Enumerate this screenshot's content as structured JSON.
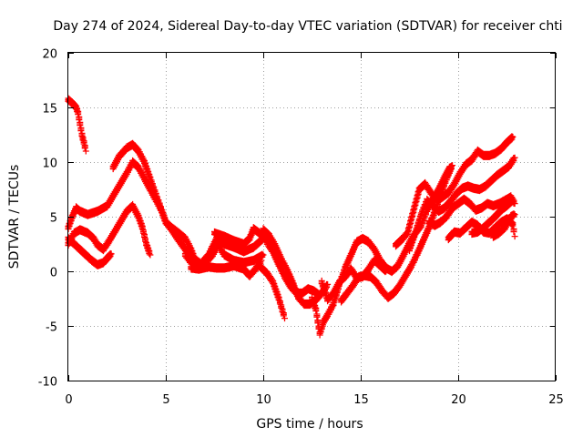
{
  "chart_data": {
    "type": "scatter",
    "title": "Day 274 of 2024, Sidereal Day-to-day VTEC variation (SDTVAR) for receiver chti",
    "xlabel": "GPS time / hours",
    "ylabel": "SDTVAR / TECUs",
    "xlim": [
      0,
      25
    ],
    "ylim": [
      -10,
      20
    ],
    "xticks": [
      0,
      5,
      10,
      15,
      20,
      25
    ],
    "yticks": [
      -10,
      -5,
      0,
      5,
      10,
      15,
      20
    ],
    "grid": true,
    "color": "#ff0000",
    "marker": "plus",
    "series": [
      {
        "name": "s1",
        "points": [
          [
            0.0,
            15.7
          ],
          [
            0.2,
            15.4
          ],
          [
            0.4,
            15.0
          ],
          [
            0.5,
            14.5
          ],
          [
            0.6,
            13.5
          ],
          [
            0.7,
            12.5
          ],
          [
            0.8,
            11.8
          ],
          [
            0.9,
            11.0
          ]
        ]
      },
      {
        "name": "s2",
        "points": [
          [
            0.0,
            4.0
          ],
          [
            0.2,
            5.0
          ],
          [
            0.4,
            5.8
          ],
          [
            0.6,
            5.5
          ],
          [
            1.0,
            5.2
          ],
          [
            1.5,
            5.5
          ],
          [
            2.0,
            6.0
          ],
          [
            2.5,
            7.5
          ],
          [
            3.0,
            9.0
          ],
          [
            3.3,
            10.0
          ],
          [
            3.6,
            9.5
          ],
          [
            3.9,
            8.5
          ],
          [
            4.2,
            7.5
          ],
          [
            4.5,
            6.5
          ],
          [
            4.8,
            5.5
          ],
          [
            5.0,
            4.5
          ],
          [
            5.3,
            4.0
          ],
          [
            5.6,
            3.6
          ],
          [
            6.0,
            3.0
          ],
          [
            6.3,
            2.0
          ],
          [
            6.5,
            1.0
          ],
          [
            6.7,
            0.5
          ]
        ]
      },
      {
        "name": "s3",
        "points": [
          [
            0.0,
            2.5
          ],
          [
            0.3,
            3.5
          ],
          [
            0.6,
            3.8
          ],
          [
            1.0,
            3.5
          ],
          [
            1.3,
            3.0
          ],
          [
            1.5,
            2.4
          ],
          [
            1.8,
            2.0
          ],
          [
            2.1,
            2.8
          ],
          [
            2.5,
            4.0
          ],
          [
            3.0,
            5.5
          ],
          [
            3.3,
            6.0
          ],
          [
            3.6,
            5.0
          ],
          [
            3.8,
            4.0
          ],
          [
            4.0,
            2.5
          ],
          [
            4.2,
            1.5
          ]
        ]
      },
      {
        "name": "s4",
        "points": [
          [
            0.0,
            3.0
          ],
          [
            0.3,
            2.5
          ],
          [
            0.6,
            2.0
          ],
          [
            0.9,
            1.5
          ],
          [
            1.2,
            1.0
          ],
          [
            1.5,
            0.6
          ],
          [
            1.8,
            0.8
          ],
          [
            2.0,
            1.2
          ],
          [
            2.2,
            1.6
          ]
        ]
      },
      {
        "name": "s5",
        "points": [
          [
            2.3,
            9.5
          ],
          [
            2.6,
            10.5
          ],
          [
            3.0,
            11.3
          ],
          [
            3.3,
            11.6
          ],
          [
            3.6,
            11.0
          ],
          [
            3.9,
            10.0
          ],
          [
            4.2,
            8.5
          ],
          [
            4.5,
            7.0
          ],
          [
            4.8,
            5.5
          ],
          [
            5.0,
            4.5
          ],
          [
            5.3,
            3.8
          ],
          [
            5.6,
            3.0
          ],
          [
            6.0,
            2.0
          ],
          [
            6.4,
            1.2
          ],
          [
            6.8,
            0.7
          ],
          [
            7.2,
            1.5
          ],
          [
            7.6,
            3.0
          ],
          [
            8.0,
            2.5
          ],
          [
            8.5,
            2.2
          ],
          [
            9.0,
            1.8
          ],
          [
            9.5,
            2.2
          ],
          [
            10.0,
            3.0
          ]
        ]
      },
      {
        "name": "s6",
        "points": [
          [
            6.0,
            1.5
          ],
          [
            6.3,
            0.8
          ],
          [
            6.6,
            0.5
          ],
          [
            7.0,
            0.7
          ],
          [
            7.4,
            1.5
          ],
          [
            7.7,
            2.4
          ],
          [
            8.0,
            1.5
          ],
          [
            8.5,
            1.0
          ],
          [
            9.0,
            0.8
          ],
          [
            9.5,
            1.0
          ],
          [
            10.0,
            1.5
          ]
        ]
      },
      {
        "name": "s7",
        "points": [
          [
            6.3,
            0.3
          ],
          [
            6.7,
            0.2
          ],
          [
            7.2,
            0.4
          ],
          [
            7.6,
            0.3
          ],
          [
            8.0,
            0.3
          ],
          [
            8.5,
            0.5
          ],
          [
            9.0,
            0.2
          ],
          [
            9.3,
            -0.4
          ],
          [
            9.6,
            0.2
          ],
          [
            9.9,
            1.0
          ]
        ]
      },
      {
        "name": "s8",
        "points": [
          [
            7.5,
            3.5
          ],
          [
            8.0,
            3.2
          ],
          [
            8.5,
            2.8
          ],
          [
            9.0,
            2.5
          ],
          [
            9.3,
            3.0
          ],
          [
            9.5,
            3.9
          ],
          [
            9.8,
            3.5
          ],
          [
            10.1,
            3.0
          ],
          [
            10.4,
            2.5
          ]
        ]
      },
      {
        "name": "s9",
        "points": [
          [
            9.8,
            0.5
          ],
          [
            10.2,
            -0.2
          ],
          [
            10.5,
            -1.0
          ],
          [
            10.8,
            -2.5
          ],
          [
            11.1,
            -4.3
          ]
        ]
      },
      {
        "name": "s10",
        "points": [
          [
            10.2,
            2.6
          ],
          [
            10.5,
            1.8
          ],
          [
            10.8,
            0.6
          ],
          [
            11.1,
            -0.5
          ],
          [
            11.4,
            -1.4
          ],
          [
            11.7,
            -2.0
          ],
          [
            12.0,
            -2.0
          ],
          [
            12.3,
            -1.6
          ],
          [
            12.6,
            -1.8
          ],
          [
            12.9,
            -2.2
          ]
        ]
      },
      {
        "name": "s11",
        "points": [
          [
            10.0,
            3.8
          ],
          [
            10.3,
            3.3
          ],
          [
            10.6,
            2.4
          ],
          [
            10.9,
            1.2
          ],
          [
            11.2,
            0.2
          ],
          [
            11.5,
            -1.0
          ],
          [
            11.8,
            -2.4
          ],
          [
            12.1,
            -3.0
          ],
          [
            12.4,
            -3.0
          ],
          [
            12.7,
            -2.6
          ],
          [
            13.0,
            -2.0
          ],
          [
            13.3,
            -1.2
          ]
        ]
      },
      {
        "name": "s12",
        "points": [
          [
            12.5,
            -2.5
          ],
          [
            12.7,
            -3.5
          ],
          [
            12.9,
            -5.7
          ],
          [
            13.1,
            -4.6
          ],
          [
            13.3,
            -4.0
          ],
          [
            13.6,
            -3.0
          ],
          [
            13.9,
            -1.2
          ],
          [
            14.2,
            0.3
          ],
          [
            14.5,
            1.5
          ],
          [
            14.8,
            2.7
          ],
          [
            15.1,
            3.0
          ],
          [
            15.4,
            2.7
          ],
          [
            15.7,
            2.0
          ],
          [
            16.0,
            1.0
          ],
          [
            16.3,
            0.3
          ],
          [
            16.6,
            0.0
          ],
          [
            16.9,
            0.5
          ],
          [
            17.2,
            1.5
          ],
          [
            17.5,
            2.6
          ],
          [
            17.8,
            3.5
          ],
          [
            18.1,
            4.2
          ],
          [
            18.4,
            5.6
          ],
          [
            18.7,
            6.6
          ],
          [
            19.0,
            7.5
          ],
          [
            19.3,
            8.6
          ],
          [
            19.6,
            9.6
          ]
        ]
      },
      {
        "name": "s13",
        "points": [
          [
            13.0,
            -1.0
          ],
          [
            13.3,
            -2.6
          ],
          [
            13.6,
            -2.0
          ],
          [
            13.9,
            -1.0
          ],
          [
            14.2,
            -0.5
          ],
          [
            14.5,
            0.2
          ],
          [
            14.8,
            -0.6
          ],
          [
            15.1,
            -0.5
          ],
          [
            15.4,
            0.2
          ],
          [
            15.7,
            1.0
          ],
          [
            16.0,
            0.5
          ],
          [
            16.3,
            0.0
          ]
        ]
      },
      {
        "name": "s14",
        "points": [
          [
            14.0,
            -2.7
          ],
          [
            14.3,
            -2.0
          ],
          [
            14.6,
            -1.3
          ],
          [
            14.9,
            -0.5
          ],
          [
            15.2,
            -0.4
          ],
          [
            15.5,
            -0.5
          ],
          [
            15.8,
            -1.0
          ],
          [
            16.1,
            -1.8
          ],
          [
            16.4,
            -2.4
          ],
          [
            16.7,
            -2.0
          ],
          [
            17.0,
            -1.3
          ],
          [
            17.3,
            -0.4
          ],
          [
            17.6,
            0.5
          ],
          [
            17.9,
            1.6
          ],
          [
            18.2,
            2.8
          ],
          [
            18.5,
            4.0
          ],
          [
            18.8,
            5.5
          ],
          [
            19.1,
            7.0
          ],
          [
            19.4,
            8.5
          ],
          [
            19.7,
            9.7
          ]
        ]
      },
      {
        "name": "s15",
        "points": [
          [
            16.8,
            2.4
          ],
          [
            17.1,
            2.9
          ],
          [
            17.4,
            3.5
          ],
          [
            17.7,
            5.5
          ],
          [
            18.0,
            7.5
          ],
          [
            18.3,
            8.0
          ],
          [
            18.6,
            7.2
          ],
          [
            18.9,
            6.5
          ],
          [
            19.2,
            6.8
          ],
          [
            19.5,
            7.2
          ],
          [
            19.8,
            8.0
          ],
          [
            20.1,
            9.0
          ],
          [
            20.4,
            9.8
          ],
          [
            20.7,
            10.2
          ],
          [
            21.0,
            11.0
          ],
          [
            21.3,
            10.6
          ],
          [
            21.6,
            10.6
          ],
          [
            21.9,
            10.8
          ],
          [
            22.2,
            11.2
          ],
          [
            22.5,
            11.8
          ],
          [
            22.8,
            12.3
          ]
        ]
      },
      {
        "name": "s16",
        "points": [
          [
            17.5,
            2.0
          ],
          [
            17.8,
            3.5
          ],
          [
            18.1,
            5.2
          ],
          [
            18.4,
            6.5
          ],
          [
            18.7,
            6.0
          ],
          [
            19.0,
            5.5
          ],
          [
            19.3,
            5.8
          ],
          [
            19.6,
            6.4
          ],
          [
            19.9,
            7.1
          ],
          [
            20.2,
            7.6
          ],
          [
            20.5,
            7.8
          ],
          [
            20.8,
            7.6
          ],
          [
            21.1,
            7.5
          ],
          [
            21.4,
            7.8
          ],
          [
            21.7,
            8.3
          ],
          [
            22.0,
            8.8
          ],
          [
            22.3,
            9.2
          ],
          [
            22.6,
            9.6
          ],
          [
            22.9,
            10.4
          ]
        ]
      },
      {
        "name": "s17",
        "points": [
          [
            18.5,
            4.5
          ],
          [
            18.8,
            4.2
          ],
          [
            19.1,
            4.5
          ],
          [
            19.4,
            5.0
          ],
          [
            19.7,
            5.8
          ],
          [
            20.0,
            6.2
          ],
          [
            20.3,
            6.6
          ],
          [
            20.6,
            6.2
          ],
          [
            20.9,
            5.6
          ],
          [
            21.2,
            5.8
          ],
          [
            21.5,
            6.2
          ],
          [
            21.8,
            6.0
          ],
          [
            22.1,
            6.2
          ],
          [
            22.4,
            6.5
          ],
          [
            22.7,
            6.8
          ],
          [
            22.9,
            6.2
          ]
        ]
      },
      {
        "name": "s18",
        "points": [
          [
            19.5,
            3.0
          ],
          [
            19.8,
            3.6
          ],
          [
            20.1,
            3.5
          ],
          [
            20.4,
            4.0
          ],
          [
            20.7,
            4.5
          ],
          [
            21.0,
            4.2
          ],
          [
            21.3,
            3.6
          ],
          [
            21.6,
            3.5
          ],
          [
            21.9,
            4.0
          ],
          [
            22.2,
            4.5
          ],
          [
            22.5,
            4.8
          ],
          [
            22.8,
            4.3
          ],
          [
            22.9,
            3.2
          ]
        ]
      },
      {
        "name": "s19",
        "points": [
          [
            20.7,
            3.5
          ],
          [
            21.0,
            3.6
          ],
          [
            21.3,
            4.0
          ],
          [
            21.6,
            4.5
          ],
          [
            21.9,
            5.0
          ],
          [
            22.2,
            5.6
          ],
          [
            22.5,
            6.0
          ],
          [
            22.8,
            6.5
          ]
        ]
      },
      {
        "name": "s20",
        "points": [
          [
            21.8,
            3.2
          ],
          [
            22.1,
            3.5
          ],
          [
            22.4,
            4.0
          ],
          [
            22.7,
            5.0
          ],
          [
            22.9,
            5.2
          ]
        ]
      }
    ]
  }
}
